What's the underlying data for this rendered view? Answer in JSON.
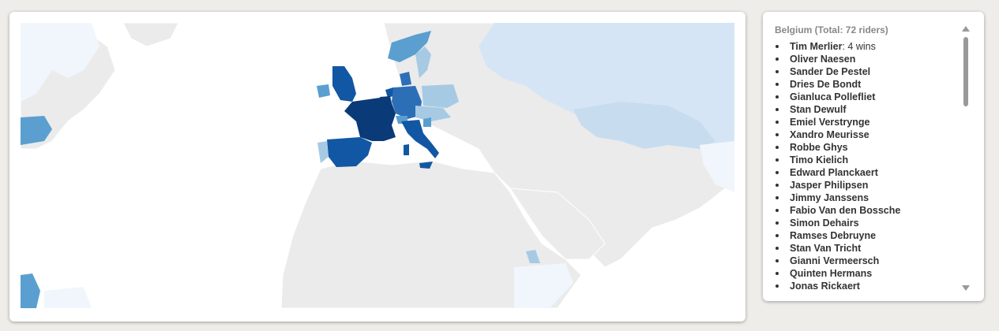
{
  "panel": {
    "title": "Belgium (Total: 72 riders)",
    "riders": [
      {
        "name": "Tim Merlier",
        "wins": ": 4 wins"
      },
      {
        "name": "Oliver Naesen",
        "wins": ""
      },
      {
        "name": "Sander De Pestel",
        "wins": ""
      },
      {
        "name": "Dries De Bondt",
        "wins": ""
      },
      {
        "name": "Gianluca Pollefliet",
        "wins": ""
      },
      {
        "name": "Stan Dewulf",
        "wins": ""
      },
      {
        "name": "Emiel Verstrynge",
        "wins": ""
      },
      {
        "name": "Xandro Meurisse",
        "wins": ""
      },
      {
        "name": "Robbe Ghys",
        "wins": ""
      },
      {
        "name": "Timo Kielich",
        "wins": ""
      },
      {
        "name": "Edward Planckaert",
        "wins": ""
      },
      {
        "name": "Jasper Philipsen",
        "wins": ""
      },
      {
        "name": "Jimmy Janssens",
        "wins": ""
      },
      {
        "name": "Fabio Van den Bossche",
        "wins": ""
      },
      {
        "name": "Simon Dehairs",
        "wins": ""
      },
      {
        "name": "Ramses Debruyne",
        "wins": ""
      },
      {
        "name": "Stan Van Tricht",
        "wins": ""
      },
      {
        "name": "Gianni Vermeersch",
        "wins": ""
      },
      {
        "name": "Quinten Hermans",
        "wins": ""
      },
      {
        "name": "Jonas Rickaert",
        "wins": ""
      }
    ]
  },
  "map": {
    "colors": {
      "land": "#ebebeb",
      "level_1": "#f1f6fc",
      "level_2": "#d5e5f5",
      "level_3": "#a7cae4",
      "level_4": "#5a9fd0",
      "level_5": "#2d6fb7",
      "level_6": "#1257a3",
      "level_7": "#0a3a78"
    }
  }
}
